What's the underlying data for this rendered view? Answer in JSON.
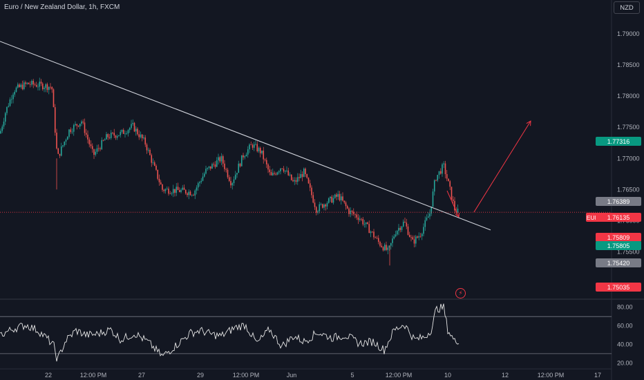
{
  "header": {
    "title": "Euro / New Zealand Dollar, 1h, FXCM",
    "currency_button": "NZD"
  },
  "tags": {
    "symbol": "EURNZD",
    "upper_green": "1.77316",
    "grey_high": "1.76389",
    "current": "1.76135",
    "red_low": "1.75809",
    "green_low": "1.75805",
    "grey_low": "1.75420",
    "red_bottom": "1.75035"
  },
  "colors": {
    "up": "#26a69a",
    "down": "#ef5350",
    "background": "#131722",
    "line": "#d1d4dc",
    "arrow": "#f23645"
  },
  "chart_data": [
    {
      "type": "candlestick",
      "title": "Euro / New Zealand Dollar, 1h, FXCM",
      "y_ticks": [
        "1.79000",
        "1.78500",
        "1.78000",
        "1.77500",
        "1.77000",
        "1.76500",
        "1.76000",
        "1.75500"
      ],
      "ylim": [
        1.7475,
        1.793
      ],
      "x_ticks": [
        "22",
        "12:00 PM",
        "27",
        "29",
        "12:00 PM",
        "Jun",
        "5",
        "12:00 PM",
        "10",
        "12",
        "12:00 PM",
        "17"
      ],
      "anchors": [
        [
          0,
          1.774
        ],
        [
          8,
          1.7775
        ],
        [
          20,
          1.781
        ],
        [
          40,
          1.782
        ],
        [
          75,
          1.7815
        ],
        [
          78,
          1.777
        ],
        [
          83,
          1.77
        ],
        [
          100,
          1.7745
        ],
        [
          118,
          1.776
        ],
        [
          135,
          1.7705
        ],
        [
          155,
          1.7735
        ],
        [
          175,
          1.774
        ],
        [
          192,
          1.7752
        ],
        [
          210,
          1.7725
        ],
        [
          235,
          1.765
        ],
        [
          262,
          1.7648
        ],
        [
          280,
          1.7645
        ],
        [
          298,
          1.768
        ],
        [
          320,
          1.77
        ],
        [
          335,
          1.766
        ],
        [
          352,
          1.7705
        ],
        [
          365,
          1.7722
        ],
        [
          378,
          1.771
        ],
        [
          392,
          1.767
        ],
        [
          408,
          1.7688
        ],
        [
          425,
          1.766
        ],
        [
          440,
          1.7678
        ],
        [
          458,
          1.7618
        ],
        [
          470,
          1.7628
        ],
        [
          490,
          1.764
        ],
        [
          505,
          1.7615
        ],
        [
          520,
          1.7605
        ],
        [
          535,
          1.7585
        ],
        [
          548,
          1.7565
        ],
        [
          562,
          1.755
        ],
        [
          572,
          1.7582
        ],
        [
          585,
          1.7598
        ],
        [
          597,
          1.7565
        ],
        [
          608,
          1.7578
        ],
        [
          622,
          1.7612
        ],
        [
          630,
          1.7668
        ],
        [
          642,
          1.7688
        ],
        [
          650,
          1.7655
        ],
        [
          658,
          1.7618
        ],
        [
          664,
          1.7613
        ]
      ],
      "trendline": [
        [
          0,
          1.7888
        ],
        [
          710,
          1.7585
        ]
      ],
      "projection": {
        "from": [
          658,
          1.7616
        ],
        "to": [
          768,
          1.776
        ]
      },
      "correction": {
        "from": [
          647,
          1.7648
        ],
        "to": [
          664,
          1.7606
        ]
      },
      "current_price": 1.76135
    },
    {
      "type": "line",
      "y_ticks": [
        "80.00",
        "60.00",
        "40.00",
        "20.00"
      ],
      "ylim": [
        15,
        88
      ],
      "levels": [
        70,
        30
      ],
      "anchors": [
        [
          0,
          50
        ],
        [
          20,
          57
        ],
        [
          38,
          61
        ],
        [
          55,
          55
        ],
        [
          70,
          45
        ],
        [
          78,
          38
        ],
        [
          83,
          23
        ],
        [
          95,
          44
        ],
        [
          110,
          55
        ],
        [
          125,
          50
        ],
        [
          140,
          51
        ],
        [
          160,
          56
        ],
        [
          175,
          45
        ],
        [
          195,
          52
        ],
        [
          215,
          42
        ],
        [
          235,
          27
        ],
        [
          255,
          39
        ],
        [
          275,
          52
        ],
        [
          290,
          55
        ],
        [
          305,
          51
        ],
        [
          320,
          49
        ],
        [
          340,
          58
        ],
        [
          355,
          61
        ],
        [
          372,
          41
        ],
        [
          390,
          56
        ],
        [
          408,
          38
        ],
        [
          425,
          49
        ],
        [
          440,
          43
        ],
        [
          460,
          53
        ],
        [
          480,
          47
        ],
        [
          500,
          50
        ],
        [
          520,
          41
        ],
        [
          540,
          43
        ],
        [
          556,
          34
        ],
        [
          570,
          55
        ],
        [
          585,
          62
        ],
        [
          600,
          45
        ],
        [
          615,
          48
        ],
        [
          625,
          57
        ],
        [
          631,
          78
        ],
        [
          642,
          80
        ],
        [
          648,
          56
        ],
        [
          658,
          43
        ],
        [
          665,
          45
        ]
      ]
    }
  ]
}
